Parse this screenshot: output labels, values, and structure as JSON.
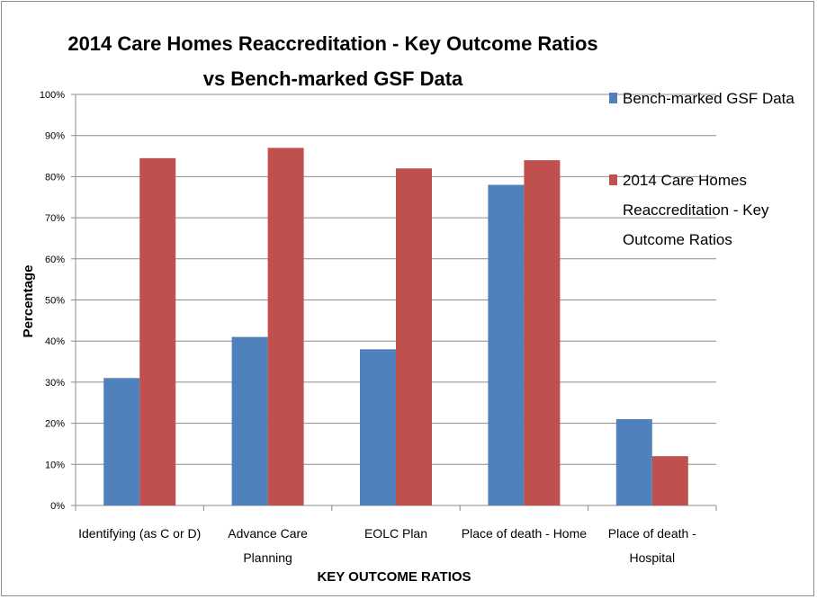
{
  "chart_data": {
    "type": "bar",
    "title_lines": [
      "2014 Care Homes Reaccreditation - Key Outcome Ratios",
      "vs Bench-marked GSF Data"
    ],
    "xlabel": "KEY OUTCOME RATIOS",
    "ylabel": "Percentage",
    "ylim": [
      0,
      100
    ],
    "y_ticks": [
      "0%",
      "10%",
      "20%",
      "30%",
      "40%",
      "50%",
      "60%",
      "70%",
      "80%",
      "90%",
      "100%"
    ],
    "grid": true,
    "legend_position": "right",
    "categories": [
      [
        "Identifying (as C or D)"
      ],
      [
        "Advance Care",
        "Planning"
      ],
      [
        "EOLC Plan"
      ],
      [
        "Place of death - Home"
      ],
      [
        "Place of death -",
        "Hospital"
      ]
    ],
    "series": [
      {
        "name": "Bench-marked GSF Data",
        "legend_lines": [
          "Bench-marked GSF Data"
        ],
        "color": "#4f81bd",
        "values": [
          31,
          41,
          38,
          78,
          21
        ]
      },
      {
        "name": "2014 Care Homes Reaccreditation - Key Outcome Ratios",
        "legend_lines": [
          "2014 Care Homes",
          "Reaccreditation - Key",
          "Outcome Ratios"
        ],
        "color": "#c0504d",
        "values": [
          84.5,
          87,
          82,
          84,
          12
        ]
      }
    ]
  }
}
